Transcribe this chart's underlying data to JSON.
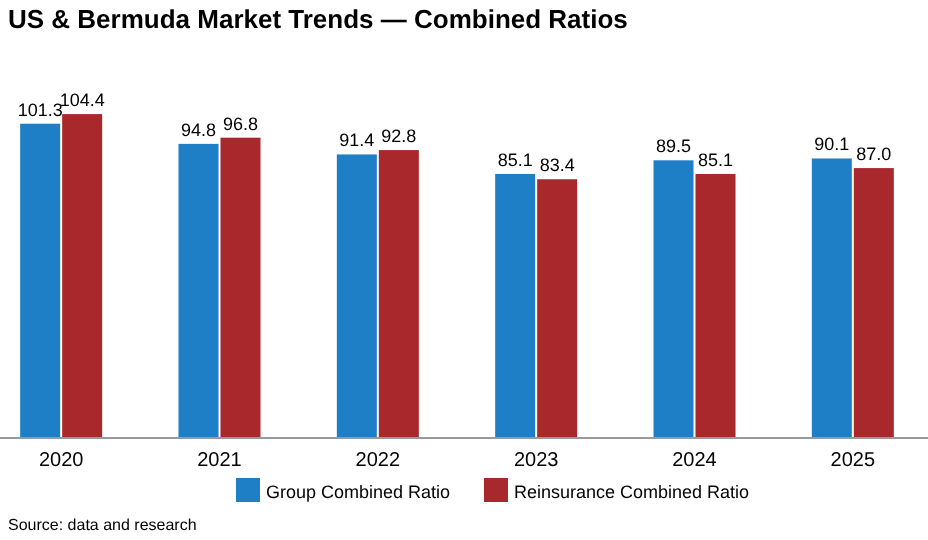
{
  "chart_data": {
    "type": "bar",
    "title": "US & Bermuda Market Trends — Combined Ratios",
    "categories": [
      "2020",
      "2021",
      "2022",
      "2023",
      "2024",
      "2025"
    ],
    "series": [
      {
        "name": "Group Combined Ratio",
        "color": "#1f7fc6",
        "values": [
          101.3,
          94.8,
          91.4,
          85.1,
          89.5,
          90.1
        ],
        "value_labels": [
          "101.3",
          "94.8",
          "91.4",
          "85.1",
          "89.5",
          "90.1"
        ]
      },
      {
        "name": "Reinsurance Combined Ratio",
        "color": "#a8282c",
        "values": [
          104.4,
          96.8,
          92.8,
          83.4,
          85.1,
          87.0
        ],
        "value_labels": [
          "104.4",
          "96.8",
          "92.8",
          "83.4",
          "85.1",
          "87.0"
        ]
      }
    ],
    "legend": "bottom",
    "grid": false,
    "annotations": [
      "Source: data and research"
    ]
  }
}
